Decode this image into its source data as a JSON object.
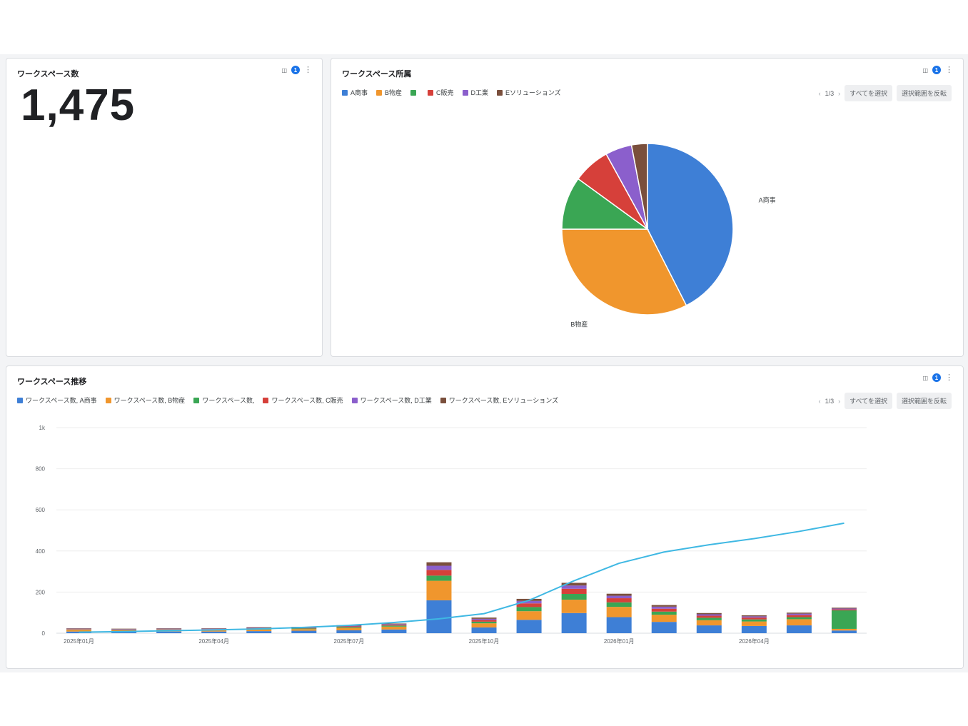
{
  "kpi_card": {
    "title": "ワークスペース数",
    "value": "1,475",
    "filter_badge": "1"
  },
  "pie_card": {
    "title": "ワークスペース所属",
    "filter_badge": "1",
    "pager": "1/3",
    "select_all_label": "すべてを選択",
    "invert_label": "選択範囲を反転",
    "legend": [
      {
        "label": "A商事",
        "color": "#3e7fd6"
      },
      {
        "label": "B物産",
        "color": "#f0962d"
      },
      {
        "label": "",
        "color": "#3aa654"
      },
      {
        "label": "C販売",
        "color": "#d6403a"
      },
      {
        "label": "D工業",
        "color": "#8b5fcc"
      },
      {
        "label": "Eソリューションズ",
        "color": "#7a4f3c"
      }
    ]
  },
  "trend_card": {
    "title": "ワークスペース推移",
    "filter_badge": "1",
    "pager": "1/3",
    "select_all_label": "すべてを選択",
    "invert_label": "選択範囲を反転",
    "legend": [
      {
        "label": "ワークスペース数, A商事",
        "color": "#3e7fd6"
      },
      {
        "label": "ワークスペース数, B物産",
        "color": "#f0962d"
      },
      {
        "label": "ワークスペース数,",
        "color": "#3aa654"
      },
      {
        "label": "ワークスペース数, C販売",
        "color": "#d6403a"
      },
      {
        "label": "ワークスペース数, D工業",
        "color": "#8b5fcc"
      },
      {
        "label": "ワークスペース数, Eソリューションズ",
        "color": "#7a4f3c"
      }
    ]
  },
  "chart_data": [
    {
      "type": "pie",
      "title": "ワークスペース所属",
      "labels": [
        "A商事",
        "B物産",
        "",
        "C販売",
        "D工業",
        "Eソリューションズ"
      ],
      "values": [
        42.5,
        32.5,
        10,
        7,
        5,
        3
      ],
      "slice_labels_shown": [
        "A商事",
        "B物産"
      ],
      "colors": [
        "#3e7fd6",
        "#f0962d",
        "#3aa654",
        "#d6403a",
        "#8b5fcc",
        "#7a4f3c"
      ]
    },
    {
      "type": "bar",
      "title": "ワークスペース推移",
      "stacked": true,
      "categories": [
        "2025-01",
        "2025-02",
        "2025-03",
        "2025-04",
        "2025-05",
        "2025-06",
        "2025-07",
        "2025-08",
        "2025-09",
        "2025-10",
        "2025-11",
        "2025-12",
        "2026-01",
        "2026-02",
        "2026-03",
        "2026-04",
        "2026-05",
        "2026-06"
      ],
      "x_tick_labels": [
        "2025年01月",
        "2025年04月",
        "2025年07月",
        "2025年10月",
        "2026年01月",
        "2026年04月"
      ],
      "x_tick_categories": [
        "2025-01",
        "2025-04",
        "2025-07",
        "2025-10",
        "2026-01",
        "2026-04"
      ],
      "y_tick_labels": [
        "0",
        "200",
        "400",
        "600",
        "800",
        "1k"
      ],
      "ylim": [
        0,
        1000
      ],
      "series": [
        {
          "name": "ワークスペース数, A商事",
          "color": "#3e7fd6",
          "values": [
            8,
            7,
            8,
            8,
            10,
            12,
            14,
            18,
            160,
            28,
            65,
            98,
            78,
            55,
            38,
            35,
            38,
            13
          ]
        },
        {
          "name": "ワークスペース数, B物産",
          "color": "#f0962d",
          "values": [
            8,
            7,
            8,
            8,
            8,
            8,
            12,
            14,
            95,
            20,
            42,
            65,
            50,
            35,
            25,
            22,
            30,
            8
          ]
        },
        {
          "name": "ワークスペース数,",
          "color": "#3aa654",
          "values": [
            2,
            2,
            2,
            2,
            3,
            3,
            4,
            5,
            25,
            8,
            20,
            28,
            22,
            15,
            12,
            10,
            10,
            90
          ]
        },
        {
          "name": "ワークスペース数, C販売",
          "color": "#d6403a",
          "values": [
            2,
            2,
            2,
            2,
            3,
            3,
            3,
            4,
            28,
            8,
            18,
            25,
            20,
            14,
            10,
            9,
            10,
            5
          ]
        },
        {
          "name": "ワークスペース数, D工業",
          "color": "#8b5fcc",
          "values": [
            2,
            2,
            2,
            2,
            2,
            2,
            3,
            3,
            20,
            6,
            12,
            16,
            12,
            10,
            7,
            6,
            7,
            4
          ]
        },
        {
          "name": "ワークスペース数, Eソリューションズ",
          "color": "#7a4f3c",
          "values": [
            2,
            2,
            2,
            2,
            3,
            3,
            3,
            3,
            17,
            6,
            10,
            13,
            10,
            8,
            6,
            5,
            5,
            4
          ]
        }
      ],
      "line_series": {
        "name": "",
        "color": "#3fb8e3",
        "values": [
          5,
          8,
          12,
          16,
          21,
          28,
          38,
          52,
          70,
          95,
          160,
          255,
          340,
          395,
          430,
          460,
          495,
          535
        ]
      }
    }
  ]
}
